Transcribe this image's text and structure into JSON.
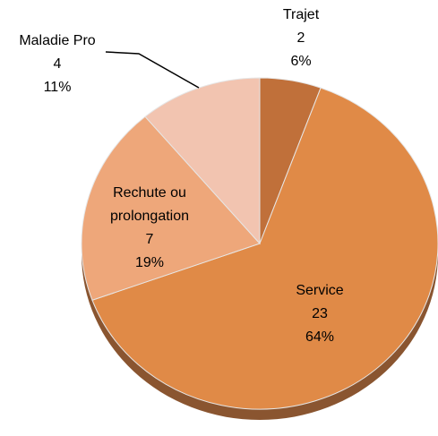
{
  "chart_data": {
    "type": "pie",
    "categories": [
      "Trajet",
      "Service",
      "Rechute ou prolongation",
      "Maladie Pro"
    ],
    "values": [
      2,
      23,
      7,
      4
    ],
    "percent_labels": [
      "6%",
      "64%",
      "19%",
      "11%"
    ],
    "colors": [
      "#c0703a",
      "#e08a47",
      "#eea77a",
      "#f2c4b0"
    ]
  }
}
